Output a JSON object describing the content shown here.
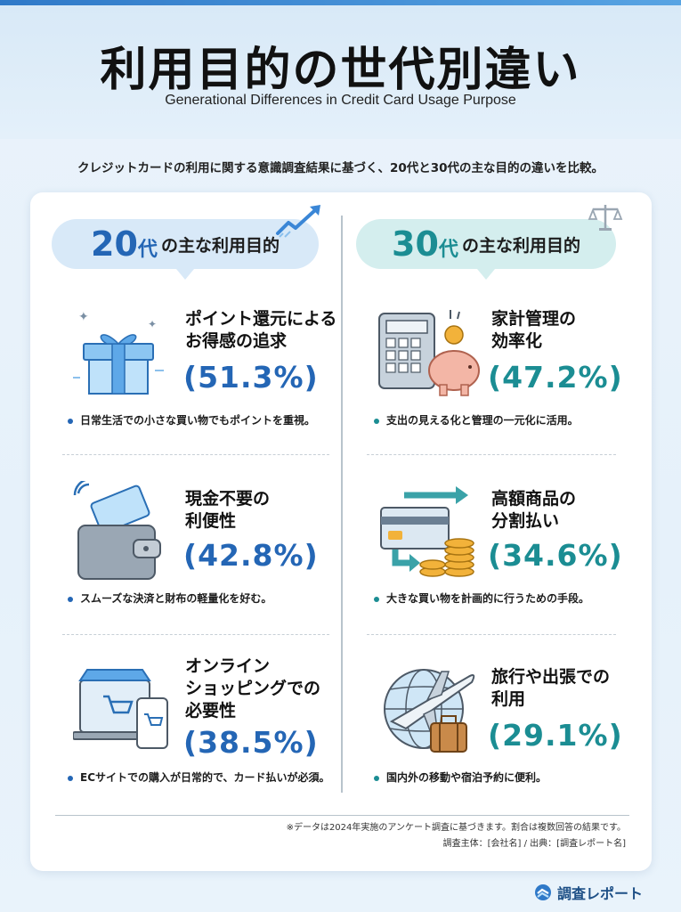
{
  "header": {
    "title": "利用目的の世代別違い",
    "subtitle": "Generational Differences in Credit Card Usage Purpose"
  },
  "intro": "クレジットカードの利用に関する意識調査結果に基づく、20代と30代の主な目的の違いを比較。",
  "columns": [
    {
      "gen": "20代",
      "gen_num": "20",
      "gen_suffix": "代",
      "heading_rest": "の主な利用目的",
      "accent": "#2466b5",
      "items": [
        {
          "title_lines": [
            "ポイント還元による",
            "お得感の追求"
          ],
          "percent": "(51.3%)",
          "percent_num": "51.3",
          "note": "日常生活での小さな買い物でもポイントを重視。",
          "icon": "gift-box-icon"
        },
        {
          "title_lines": [
            "現金不要の",
            "利便性"
          ],
          "percent": "(42.8%)",
          "percent_num": "42.8",
          "note": "スムーズな決済と財布の軽量化を好む。",
          "icon": "wallet-card-icon"
        },
        {
          "title_lines": [
            "オンライン",
            "ショッピングでの",
            "必要性"
          ],
          "percent": "(38.5%)",
          "percent_num": "38.5",
          "note": "ECサイトでの購入が日常的で、カード払いが必須。",
          "icon": "online-shop-icon"
        }
      ]
    },
    {
      "gen": "30代",
      "gen_num": "30",
      "gen_suffix": "代",
      "heading_rest": "の主な利用目的",
      "accent": "#1b8d93",
      "items": [
        {
          "title_lines": [
            "家計管理の",
            "効率化"
          ],
          "percent": "(47.2%)",
          "percent_num": "47.2",
          "note": "支出の見える化と管理の一元化に活用。",
          "icon": "calculator-piggy-icon"
        },
        {
          "title_lines": [
            "高額商品の",
            "分割払い"
          ],
          "percent": "(34.6%)",
          "percent_num": "34.6",
          "note": "大きな買い物を計画的に行うための手段。",
          "icon": "card-coins-icon"
        },
        {
          "title_lines": [
            "旅行や出張での",
            "利用"
          ],
          "percent": "(29.1%)",
          "percent_num": "29.1",
          "note": "国内外の移動や宿泊予約に便利。",
          "icon": "globe-plane-icon"
        }
      ]
    }
  ],
  "chart_data": {
    "type": "table",
    "series": [
      {
        "name": "20代",
        "categories": [
          "ポイント還元によるお得感の追求",
          "現金不要の利便性",
          "オンラインショッピングでの必要性"
        ],
        "values": [
          51.3,
          42.8,
          38.5
        ]
      },
      {
        "name": "30代",
        "categories": [
          "家計管理の効率化",
          "高額商品の分割払い",
          "旅行や出張での利用"
        ],
        "values": [
          47.2,
          34.6,
          29.1
        ]
      }
    ]
  },
  "footer": {
    "note": "※データは2024年実施のアンケート調査に基づきます。割合は複数回答の結果です。",
    "source": "調査主体：[会社名] / 出典：[調査レポート名]",
    "brand": "調査レポート"
  },
  "colors": {
    "blue": "#2466b5",
    "teal": "#1b8d93"
  }
}
